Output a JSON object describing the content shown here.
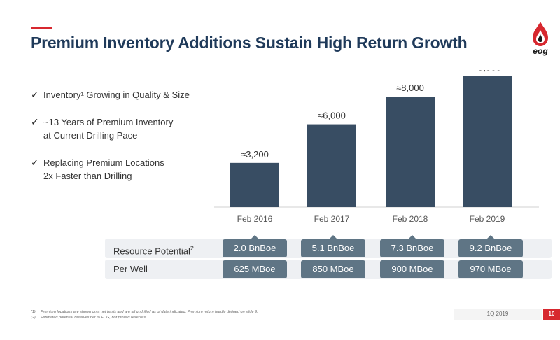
{
  "title": "Premium Inventory Additions Sustain High Return Growth",
  "logo": {
    "text": "eog",
    "icon": "flame-drop-icon"
  },
  "bullets": [
    {
      "text": "Inventory¹ Growing in Quality & Size"
    },
    {
      "text": "~13 Years of Premium Inventory\nat Current Drilling Pace"
    },
    {
      "text": "Replacing Premium Locations\n2x Faster than Drilling"
    }
  ],
  "chart_data": {
    "type": "bar",
    "categories": [
      "Feb 2016",
      "Feb 2017",
      "Feb 2018",
      "Feb 2019"
    ],
    "values": [
      3200,
      6000,
      8000,
      9500
    ],
    "data_labels": [
      "≈3,200",
      "≈6,000",
      "≈8,000",
      "≈9,500"
    ],
    "title": "",
    "xlabel": "",
    "ylabel": "",
    "ylim": [
      0,
      10000
    ],
    "grid": false,
    "bar_color": "#384d63"
  },
  "metrics": {
    "resource_potential": {
      "label": "Resource Potential",
      "sup": "2",
      "values": [
        "2.0 BnBoe",
        "5.1 BnBoe",
        "7.3 BnBoe",
        "9.2 BnBoe"
      ]
    },
    "per_well": {
      "label": "Per Well",
      "values": [
        "625 MBoe",
        "850 MBoe",
        "900 MBoe",
        "970 MBoe"
      ]
    }
  },
  "footnotes": [
    {
      "num": "(1)",
      "text": "Premium locations are shown on a net basis and are all undrilled as of date indicated. Premium return hurdle defined on slide 9."
    },
    {
      "num": "(2)",
      "text": "Estimated potential reserves net to EOG, not proved reserves."
    }
  ],
  "footer": {
    "quarter": "1Q 2019",
    "page": "10"
  },
  "colors": {
    "accent": "#d7282f",
    "title": "#1f3a5a",
    "bar": "#384d63",
    "pill": "#5f7585"
  }
}
